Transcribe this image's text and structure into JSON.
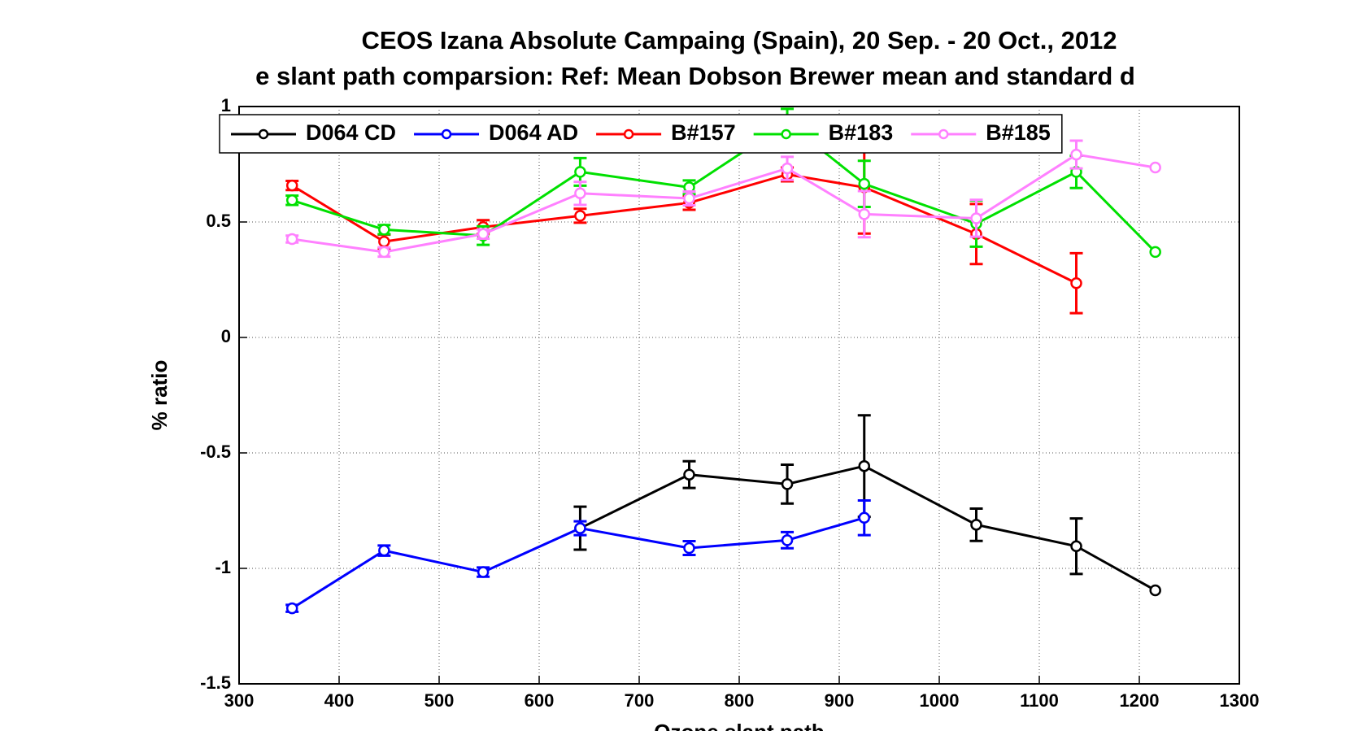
{
  "chart_data": {
    "type": "line",
    "title": "CEOS Izana Absolute Campaing (Spain), 20 Sep. - 20 Oct., 2012",
    "subtitle": "e slant path comparsion: Ref: Mean Dobson Brewer  mean and standard d",
    "xlabel": "Ozone slant path",
    "ylabel": "% ratio",
    "xlim": [
      300,
      1300
    ],
    "xticks": [
      300,
      400,
      500,
      600,
      700,
      800,
      900,
      1000,
      1100,
      1200,
      1300
    ],
    "ylim": [
      -1.5,
      1
    ],
    "yticks": [
      -1.5,
      -1,
      -0.5,
      0,
      0.5,
      1
    ],
    "grid": true,
    "legend": "top",
    "x": [
      353,
      445,
      544,
      641,
      750,
      848,
      925,
      1037,
      1137,
      1216
    ],
    "series": [
      {
        "name": "D064 CD",
        "color": "#000000",
        "values": [
          null,
          null,
          null,
          -0.826,
          -0.594,
          -0.635,
          -0.557,
          -0.811,
          -0.904,
          -1.095
        ],
        "errors": [
          null,
          null,
          null,
          0.093,
          0.058,
          0.084,
          0.22,
          0.07,
          0.12,
          null
        ]
      },
      {
        "name": "D064 AD",
        "color": "#0000ff",
        "values": [
          -1.173,
          -0.923,
          -1.016,
          -0.826,
          -0.912,
          -0.878,
          -0.781,
          null,
          null,
          null
        ],
        "errors": [
          0.015,
          0.022,
          0.02,
          0.03,
          0.03,
          0.035,
          0.075,
          null,
          null,
          null
        ]
      },
      {
        "name": "B#157",
        "color": "#ff0000",
        "values": [
          0.658,
          0.415,
          0.478,
          0.527,
          0.583,
          0.706,
          0.65,
          0.448,
          0.235,
          null
        ],
        "errors": [
          0.02,
          0.03,
          0.03,
          0.03,
          0.03,
          0.03,
          0.2,
          0.13,
          0.13,
          null
        ]
      },
      {
        "name": "B#183",
        "color": "#00e000",
        "values": [
          0.594,
          0.467,
          0.441,
          0.717,
          0.65,
          0.93,
          0.665,
          0.493,
          0.717,
          0.37
        ],
        "errors": [
          0.02,
          0.02,
          0.04,
          0.06,
          0.03,
          0.06,
          0.1,
          0.1,
          0.07,
          null
        ]
      },
      {
        "name": "B#185",
        "color": "#ff80ff",
        "values": [
          0.426,
          0.37,
          0.448,
          0.624,
          0.602,
          0.732,
          0.534,
          0.516,
          0.792,
          0.736
        ],
        "errors": [
          0.015,
          0.02,
          0.02,
          0.05,
          0.03,
          0.05,
          0.1,
          0.08,
          0.06,
          null
        ]
      }
    ]
  }
}
